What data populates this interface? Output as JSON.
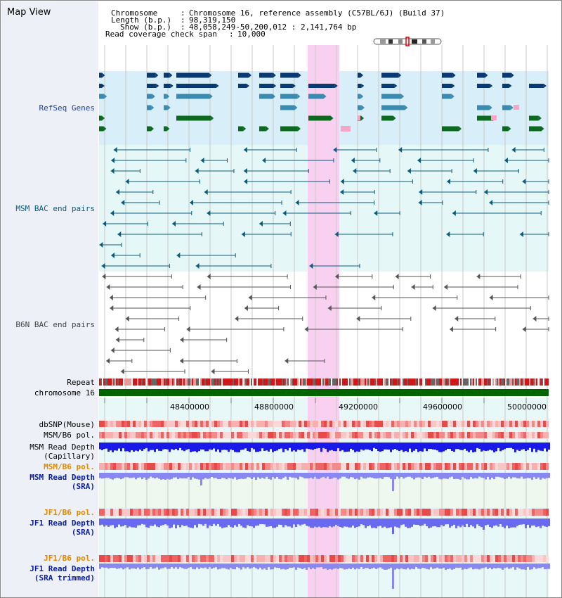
{
  "title": "Map View",
  "info": {
    "chromosome_key": "Chromosome",
    "chromosome_val": "Chromosome 16, reference assembly (C57BL/6J) (Build 37)",
    "length_key": "Length (b.p.)",
    "length_val": "98,319,150",
    "show_key": "Show (b.p.)",
    "show_val": "48,058,249-50,200,012 : 2,141,764 bp",
    "span_key": "Read coverage check span",
    "span_val": "10,000"
  },
  "tracks": {
    "refseq": "RefSeq Genes",
    "msm_bac": "MSM BAC end pairs",
    "b6n_bac": "B6N BAC end pairs",
    "repeat": "Repeat",
    "chromosome": "chromosome 16",
    "dbsnp": "dbSNP(Mouse)",
    "msm_b6_pol_1": "MSM/B6 pol.",
    "msm_depth_cap_1": "MSM Read Depth",
    "msm_depth_cap_2": "(Capillary)",
    "msm_b6_pol_2": "MSM/B6 pol.",
    "msm_depth_sra_1": "MSM Read Depth",
    "msm_depth_sra_2": "(SRA)",
    "jf1_b6_pol_1": "JF1/B6 pol.",
    "jf1_depth_sra_1": "JF1 Read Depth",
    "jf1_depth_sra_2": "(SRA)",
    "jf1_b6_pol_2": "JF1/B6 pol.",
    "jf1_depth_trim_1": "JF1 Read Depth",
    "jf1_depth_trim_2": "(SRA trimmed)"
  },
  "axis": {
    "ticks": [
      "48400000",
      "48800000",
      "49200000",
      "49600000",
      "50000000"
    ]
  },
  "colors": {
    "refseq_dark": "#0a3a72",
    "refseq_mid": "#3b8bb0",
    "refseq_green": "#0a6b1e",
    "msm_label": "#0a5c7e",
    "b6n_label": "#444444",
    "pol_label_orange": "#e08a00",
    "depth_label_blue": "#0a1ea0",
    "highlight": "#f8d0f0",
    "chromosome_bar": "#006400"
  }
}
